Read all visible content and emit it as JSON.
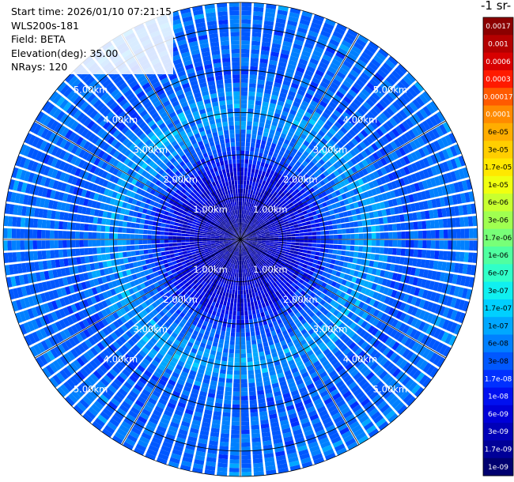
{
  "info": {
    "start_time": "Start time: 2026/01/10 07:21:15",
    "instrument": "WLS200s-181",
    "field": "Field: BETA",
    "elevation": "Elevation(deg): 35.00",
    "nrays": "NRays: 120"
  },
  "colorbar": {
    "title": "-1 sr-",
    "labels": [
      "0.0017",
      "0.001",
      "0.0006",
      "0.0003",
      "0.00017",
      "0.0001",
      "6e-05",
      "3e-05",
      "1.7e-05",
      "1e-05",
      "6e-06",
      "3e-06",
      "1.7e-06",
      "1e-06",
      "6e-07",
      "3e-07",
      "1.7e-07",
      "1e-07",
      "6e-08",
      "3e-08",
      "1.7e-08",
      "1e-08",
      "6e-09",
      "3e-09",
      "1.7e-09",
      "1e-09"
    ],
    "colors": [
      "#8b0000",
      "#b40000",
      "#d80000",
      "#ff1a00",
      "#ff5a00",
      "#ff8a00",
      "#ffad00",
      "#ffce00",
      "#ffe800",
      "#f0ff10",
      "#c8ff30",
      "#a0ff50",
      "#78ff78",
      "#50ffa0",
      "#30ffc8",
      "#10f0f0",
      "#00d0ff",
      "#00a8ff",
      "#0080ff",
      "#0058ff",
      "#0030ff",
      "#0010f0",
      "#0000d8",
      "#0000b8",
      "#000098",
      "#000070"
    ]
  },
  "chart_data": {
    "type": "heatmap",
    "projection": "polar (PPI scan)",
    "field": "BETA",
    "elevation_deg": 35.0,
    "nrays": 120,
    "range_rings_km": [
      1,
      2,
      3,
      4,
      5
    ],
    "ring_labels": [
      "1.00km",
      "2.00km",
      "3.00km",
      "4.00km",
      "5.00km"
    ],
    "max_range_km": 5.6,
    "value_profile": [
      {
        "range_km": 0.0,
        "value": 1.7e-09
      },
      {
        "range_km": 1.0,
        "value": 6e-09
      },
      {
        "range_km": 1.6,
        "value": 1e-08
      },
      {
        "range_km": 2.1,
        "value": 3e-08
      },
      {
        "range_km": 2.8,
        "value": 1e-07
      },
      {
        "range_km": 3.2,
        "value": 1e-07
      },
      {
        "range_km": 3.8,
        "value": 4e-08
      },
      {
        "range_km": 4.5,
        "value": 5e-08
      },
      {
        "range_km": 5.6,
        "value": 6e-08
      }
    ],
    "color_scale": "log",
    "vmin": 1e-09,
    "vmax": 0.0017
  }
}
